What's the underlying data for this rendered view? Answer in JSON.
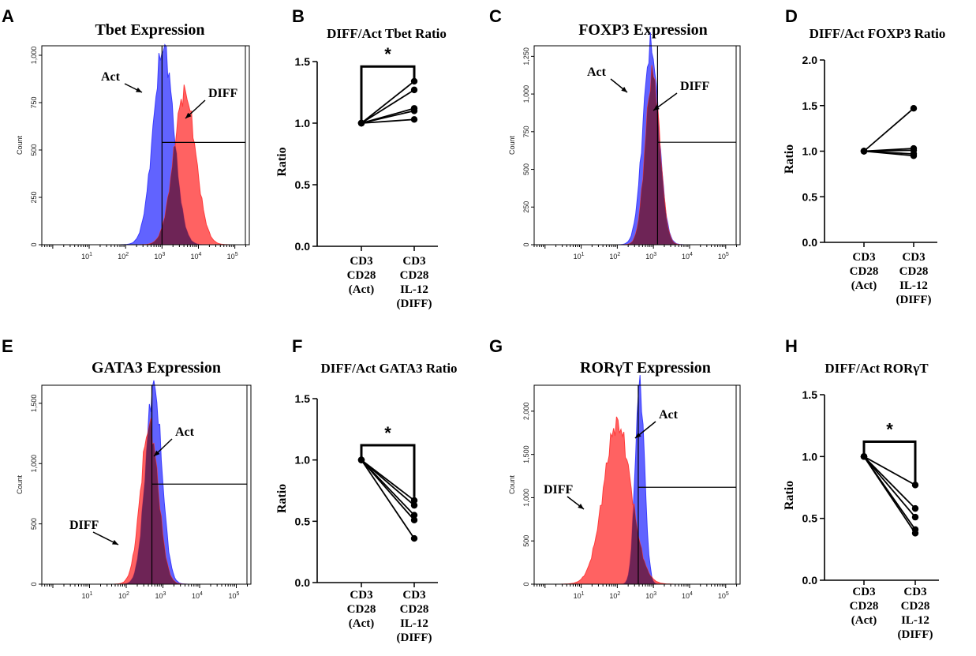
{
  "colors": {
    "act": "#3a3cff",
    "diff": "#ff3b3b",
    "overlap": "#5a1f55",
    "axis": "#000000"
  },
  "chart_data": [
    {
      "id": "A",
      "type": "area",
      "title": "Tbet Expression",
      "ylabel": "Count",
      "ylim": [
        0,
        1050
      ],
      "yticks": [
        0,
        250,
        500,
        750,
        1000
      ],
      "ytick_labels": [
        "0",
        "250",
        "500",
        "750",
        "1,000"
      ],
      "xscale": "log",
      "xlim": [
        0.5,
        250000.0
      ],
      "xtick_exps": [
        "1",
        "2",
        "3",
        "4",
        "5"
      ],
      "vline": 1000,
      "gate": {
        "x": 1000,
        "y": 540
      },
      "series": [
        {
          "name": "Act",
          "color": "act",
          "peak_x": 1100,
          "spread": 0.28,
          "peak_y": 1040
        },
        {
          "name": "DIFF",
          "color": "diff",
          "peak_x": 4200,
          "spread": 0.3,
          "peak_y": 800
        }
      ],
      "annotations": [
        {
          "text": "Act",
          "series": "Act"
        },
        {
          "text": "DIFF",
          "series": "DIFF"
        }
      ]
    },
    {
      "id": "B",
      "type": "line",
      "title": "DIFF/Act Tbet Ratio",
      "ylabel": "Ratio",
      "ylim": [
        0.0,
        1.5
      ],
      "yticks": [
        0.0,
        0.5,
        1.0,
        1.5
      ],
      "ytick_labels": [
        "0.0",
        "0.5",
        "1.0",
        "1.5"
      ],
      "categories": [
        "CD3\nCD28\n(Act)",
        "CD3\nCD28\nIL-12\n(DIFF)"
      ],
      "pairs": [
        [
          1.0,
          1.34
        ],
        [
          1.0,
          1.27
        ],
        [
          1.0,
          1.12
        ],
        [
          1.0,
          1.1
        ],
        [
          1.0,
          1.03
        ]
      ],
      "significance": "*"
    },
    {
      "id": "C",
      "type": "area",
      "title": "FOXP3 Expression",
      "ylabel": "Count",
      "ylim": [
        0,
        1320
      ],
      "yticks": [
        0,
        250,
        500,
        750,
        1000,
        1250
      ],
      "ytick_labels": [
        "0",
        "250",
        "500",
        "750",
        "1,000",
        "1,250"
      ],
      "xscale": "log",
      "xlim": [
        0.5,
        250000.0
      ],
      "xtick_exps": [
        "1",
        "2",
        "3",
        "4",
        "5"
      ],
      "vline": 1300,
      "gate": {
        "x": 1300,
        "y": 680
      },
      "series": [
        {
          "name": "Act",
          "color": "act",
          "peak_x": 850,
          "spread": 0.22,
          "peak_y": 1310
        },
        {
          "name": "DIFF",
          "color": "diff",
          "peak_x": 950,
          "spread": 0.2,
          "peak_y": 1130
        }
      ],
      "annotations": [
        {
          "text": "Act",
          "series": "Act"
        },
        {
          "text": "DIFF",
          "series": "DIFF"
        }
      ]
    },
    {
      "id": "D",
      "type": "line",
      "title": "DIFF/Act FOXP3 Ratio",
      "ylabel": "Ratio",
      "ylim": [
        0.0,
        2.0
      ],
      "yticks": [
        0.0,
        0.5,
        1.0,
        1.5,
        2.0
      ],
      "ytick_labels": [
        "0.0",
        "0.5",
        "1.0",
        "1.5",
        "2.0"
      ],
      "categories": [
        "CD3\nCD28\n(Act)",
        "CD3\nCD28\nIL-12\n(DIFF)"
      ],
      "pairs": [
        [
          1.0,
          1.47
        ],
        [
          1.0,
          1.03
        ],
        [
          1.0,
          1.01
        ],
        [
          1.0,
          0.97
        ],
        [
          1.0,
          0.95
        ]
      ],
      "significance": ""
    },
    {
      "id": "E",
      "type": "area",
      "title": "GATA3 Expression",
      "ylabel": "Count",
      "ylim": [
        0,
        1650
      ],
      "yticks": [
        0,
        500,
        1000,
        1500
      ],
      "ytick_labels": [
        "0",
        "500",
        "1,000",
        "1,500"
      ],
      "xscale": "log",
      "xlim": [
        0.5,
        250000.0
      ],
      "xtick_exps": [
        "1",
        "2",
        "3",
        "4",
        "5"
      ],
      "vline": 500,
      "gate": {
        "x": 500,
        "y": 830
      },
      "series": [
        {
          "name": "Act",
          "color": "act",
          "peak_x": 560,
          "spread": 0.22,
          "peak_y": 1640
        },
        {
          "name": "DIFF",
          "color": "diff",
          "peak_x": 430,
          "spread": 0.24,
          "peak_y": 1310
        }
      ],
      "annotations": [
        {
          "text": "Act",
          "series": "Act"
        },
        {
          "text": "DIFF",
          "series": "DIFF"
        }
      ]
    },
    {
      "id": "F",
      "type": "line",
      "title": "DIFF/Act GATA3 Ratio",
      "ylabel": "Ratio",
      "ylim": [
        0.0,
        1.5
      ],
      "yticks": [
        0.0,
        0.5,
        1.0,
        1.5
      ],
      "ytick_labels": [
        "0.0",
        "0.5",
        "1.0",
        "1.5"
      ],
      "categories": [
        "CD3\nCD28\n(Act)",
        "CD3\nCD28\nIL-12\n(DIFF)"
      ],
      "pairs": [
        [
          1.0,
          0.67
        ],
        [
          1.0,
          0.63
        ],
        [
          1.0,
          0.55
        ],
        [
          1.0,
          0.51
        ],
        [
          1.0,
          0.36
        ]
      ],
      "significance": "*"
    },
    {
      "id": "G",
      "type": "area",
      "title": "RORγT Expression",
      "ylabel": "Count",
      "ylim": [
        0,
        2300
      ],
      "yticks": [
        0,
        500,
        1000,
        1500,
        2000
      ],
      "ytick_labels": [
        "0",
        "500",
        "1,000",
        "1,500",
        "2,000"
      ],
      "xscale": "log",
      "xlim": [
        0.5,
        250000.0
      ],
      "xtick_exps": [
        "1",
        "2",
        "3",
        "4",
        "5"
      ],
      "vline": 380,
      "gate": {
        "x": 380,
        "y": 1120
      },
      "series": [
        {
          "name": "Act",
          "color": "act",
          "peak_x": 420,
          "spread": 0.13,
          "peak_y": 2300
        },
        {
          "name": "DIFF",
          "color": "diff",
          "peak_x": 100,
          "spread": 0.38,
          "peak_y": 1850
        }
      ],
      "annotations": [
        {
          "text": "Act",
          "series": "Act"
        },
        {
          "text": "DIFF",
          "series": "DIFF"
        }
      ]
    },
    {
      "id": "H",
      "type": "line",
      "title": "DIFF/Act RORγT",
      "ylabel": "Ratio",
      "ylim": [
        0.0,
        1.5
      ],
      "yticks": [
        0.0,
        0.5,
        1.0,
        1.5
      ],
      "ytick_labels": [
        "0.0",
        "0.5",
        "1.0",
        "1.5"
      ],
      "categories": [
        "CD3\nCD28\n(Act)",
        "CD3\nCD28\nIL-12\n(DIFF)"
      ],
      "pairs": [
        [
          1.0,
          0.77
        ],
        [
          1.0,
          0.58
        ],
        [
          1.0,
          0.51
        ],
        [
          1.0,
          0.41
        ],
        [
          1.0,
          0.38
        ]
      ],
      "significance": "*"
    }
  ]
}
